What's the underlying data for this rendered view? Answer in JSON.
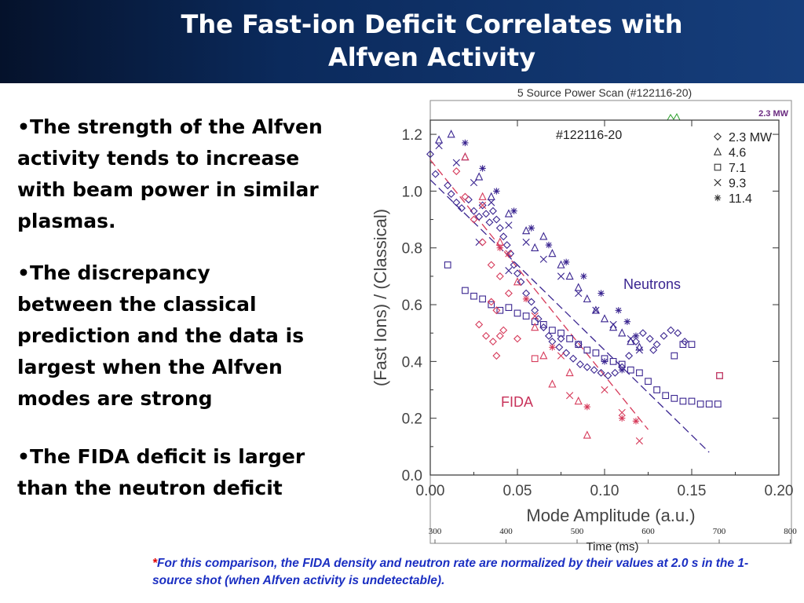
{
  "slide": {
    "title_lines": [
      "The Fast-ion Deficit Correlates with",
      "Alfven Activity"
    ],
    "bullets": [
      "•The strength of the Alfven\nactivity tends to increase\nwith beam power in similar\nplasmas.",
      "•The discrepancy\nbetween the classical\nprediction and the data is\nlargest when the Alfven\nmodes are strong",
      "•The FIDA deficit is larger\nthan the neutron deficit"
    ],
    "footnote_star": "*",
    "footnote": "For this comparison, the FIDA density and neutron rate are normalized by their values at 2.0 s in the 1-source shot (when Alfven activity is undetectable)."
  },
  "background_panel": {
    "title": "5 Source Power Scan (#122116-20)",
    "label": "2.3 MW",
    "time_ticks": [
      "300",
      "400",
      "500",
      "600",
      "700",
      "800"
    ],
    "time_label": "Time (ms)"
  },
  "chart_data": {
    "type": "scatter",
    "title": "#122116-20",
    "xlabel": "Mode Amplitude (a.u.)",
    "ylabel": "(Fast Ions) / (Classical)",
    "xlim": [
      0.0,
      0.2
    ],
    "ylim": [
      0.0,
      1.25
    ],
    "xticks": [
      "0.00",
      "0.05",
      "0.10",
      "0.15",
      "0.20"
    ],
    "yticks": [
      "0.0",
      "0.2",
      "0.4",
      "0.6",
      "0.8",
      "1.0",
      "1.2"
    ],
    "legend": {
      "placement": "top-right",
      "entries": [
        {
          "symbol": "diamond",
          "label": "2.3 MW"
        },
        {
          "symbol": "triangle",
          "label": "4.6"
        },
        {
          "symbol": "square",
          "label": "7.1"
        },
        {
          "symbol": "x",
          "label": "9.3"
        },
        {
          "symbol": "asterisk",
          "label": "11.4"
        }
      ]
    },
    "annotations": [
      {
        "text": "Neutrons",
        "color": "#3a2590"
      },
      {
        "text": "FIDA",
        "color": "#c8325a"
      }
    ],
    "colors": {
      "neutrons": "#3a2590",
      "fida": "#d63a5a",
      "axes": "#333333"
    },
    "fit_lines": [
      {
        "name": "Neutrons",
        "x": [
          0.0,
          0.16
        ],
        "y": [
          1.04,
          0.08
        ]
      },
      {
        "name": "FIDA",
        "x": [
          0.0,
          0.125
        ],
        "y": [
          1.11,
          0.16
        ]
      }
    ],
    "series": [
      {
        "name": "Neutrons",
        "color": "neutrons",
        "points": [
          [
            0.0,
            1.13,
            "diamond"
          ],
          [
            0.003,
            1.06,
            "diamond"
          ],
          [
            0.01,
            1.02,
            "diamond"
          ],
          [
            0.012,
            0.99,
            "diamond"
          ],
          [
            0.015,
            0.96,
            "diamond"
          ],
          [
            0.018,
            0.94,
            "diamond"
          ],
          [
            0.022,
            0.97,
            "diamond"
          ],
          [
            0.025,
            0.93,
            "diamond"
          ],
          [
            0.028,
            0.91,
            "diamond"
          ],
          [
            0.03,
            0.95,
            "diamond"
          ],
          [
            0.032,
            0.92,
            "diamond"
          ],
          [
            0.034,
            0.89,
            "diamond"
          ],
          [
            0.036,
            0.93,
            "diamond"
          ],
          [
            0.038,
            0.9,
            "diamond"
          ],
          [
            0.04,
            0.87,
            "diamond"
          ],
          [
            0.042,
            0.84,
            "diamond"
          ],
          [
            0.044,
            0.81,
            "diamond"
          ],
          [
            0.046,
            0.78,
            "diamond"
          ],
          [
            0.048,
            0.74,
            "diamond"
          ],
          [
            0.05,
            0.71,
            "diamond"
          ],
          [
            0.052,
            0.68,
            "diamond"
          ],
          [
            0.055,
            0.64,
            "diamond"
          ],
          [
            0.058,
            0.61,
            "diamond"
          ],
          [
            0.06,
            0.58,
            "diamond"
          ],
          [
            0.062,
            0.55,
            "diamond"
          ],
          [
            0.065,
            0.52,
            "diamond"
          ],
          [
            0.068,
            0.49,
            "diamond"
          ],
          [
            0.07,
            0.47,
            "diamond"
          ],
          [
            0.074,
            0.45,
            "diamond"
          ],
          [
            0.078,
            0.43,
            "diamond"
          ],
          [
            0.082,
            0.41,
            "diamond"
          ],
          [
            0.086,
            0.39,
            "diamond"
          ],
          [
            0.09,
            0.38,
            "diamond"
          ],
          [
            0.094,
            0.37,
            "diamond"
          ],
          [
            0.098,
            0.36,
            "diamond"
          ],
          [
            0.102,
            0.35,
            "diamond"
          ],
          [
            0.106,
            0.36,
            "diamond"
          ],
          [
            0.11,
            0.38,
            "diamond"
          ],
          [
            0.114,
            0.42,
            "diamond"
          ],
          [
            0.118,
            0.47,
            "diamond"
          ],
          [
            0.122,
            0.5,
            "diamond"
          ],
          [
            0.126,
            0.48,
            "diamond"
          ],
          [
            0.13,
            0.46,
            "diamond"
          ],
          [
            0.134,
            0.49,
            "diamond"
          ],
          [
            0.138,
            0.51,
            "diamond"
          ],
          [
            0.142,
            0.5,
            "diamond"
          ],
          [
            0.146,
            0.47,
            "diamond"
          ],
          [
            0.128,
            0.44,
            "diamond"
          ],
          [
            0.075,
            0.48,
            "diamond"
          ],
          [
            0.085,
            0.46,
            "diamond"
          ],
          [
            0.005,
            1.18,
            "triangle"
          ],
          [
            0.012,
            1.2,
            "triangle"
          ],
          [
            0.02,
            1.12,
            "triangle"
          ],
          [
            0.028,
            1.05,
            "triangle"
          ],
          [
            0.035,
            0.98,
            "triangle"
          ],
          [
            0.045,
            0.92,
            "triangle"
          ],
          [
            0.055,
            0.86,
            "triangle"
          ],
          [
            0.06,
            0.8,
            "triangle"
          ],
          [
            0.065,
            0.84,
            "triangle"
          ],
          [
            0.07,
            0.78,
            "triangle"
          ],
          [
            0.075,
            0.74,
            "triangle"
          ],
          [
            0.08,
            0.7,
            "triangle"
          ],
          [
            0.085,
            0.66,
            "triangle"
          ],
          [
            0.09,
            0.62,
            "triangle"
          ],
          [
            0.095,
            0.58,
            "triangle"
          ],
          [
            0.1,
            0.55,
            "triangle"
          ],
          [
            0.105,
            0.52,
            "triangle"
          ],
          [
            0.11,
            0.5,
            "triangle"
          ],
          [
            0.115,
            0.47,
            "triangle"
          ],
          [
            0.12,
            0.45,
            "triangle"
          ],
          [
            0.01,
            0.74,
            "square"
          ],
          [
            0.02,
            0.65,
            "square"
          ],
          [
            0.025,
            0.63,
            "square"
          ],
          [
            0.03,
            0.62,
            "square"
          ],
          [
            0.035,
            0.6,
            "square"
          ],
          [
            0.04,
            0.58,
            "square"
          ],
          [
            0.045,
            0.59,
            "square"
          ],
          [
            0.05,
            0.57,
            "square"
          ],
          [
            0.055,
            0.56,
            "square"
          ],
          [
            0.06,
            0.54,
            "square"
          ],
          [
            0.065,
            0.53,
            "square"
          ],
          [
            0.07,
            0.51,
            "square"
          ],
          [
            0.075,
            0.5,
            "square"
          ],
          [
            0.08,
            0.48,
            "square"
          ],
          [
            0.085,
            0.46,
            "square"
          ],
          [
            0.09,
            0.44,
            "square"
          ],
          [
            0.095,
            0.43,
            "square"
          ],
          [
            0.1,
            0.41,
            "square"
          ],
          [
            0.105,
            0.4,
            "square"
          ],
          [
            0.11,
            0.39,
            "square"
          ],
          [
            0.115,
            0.37,
            "square"
          ],
          [
            0.12,
            0.36,
            "square"
          ],
          [
            0.125,
            0.33,
            "square"
          ],
          [
            0.13,
            0.3,
            "square"
          ],
          [
            0.135,
            0.28,
            "square"
          ],
          [
            0.14,
            0.27,
            "square"
          ],
          [
            0.145,
            0.26,
            "square"
          ],
          [
            0.15,
            0.26,
            "square"
          ],
          [
            0.155,
            0.25,
            "square"
          ],
          [
            0.16,
            0.25,
            "square"
          ],
          [
            0.165,
            0.25,
            "square"
          ],
          [
            0.166,
            0.35,
            "square"
          ],
          [
            0.14,
            0.42,
            "square"
          ],
          [
            0.145,
            0.46,
            "square"
          ],
          [
            0.15,
            0.46,
            "square"
          ],
          [
            0.005,
            1.16,
            "x"
          ],
          [
            0.015,
            1.1,
            "x"
          ],
          [
            0.025,
            1.03,
            "x"
          ],
          [
            0.035,
            0.96,
            "x"
          ],
          [
            0.045,
            0.88,
            "x"
          ],
          [
            0.055,
            0.82,
            "x"
          ],
          [
            0.065,
            0.76,
            "x"
          ],
          [
            0.075,
            0.7,
            "x"
          ],
          [
            0.085,
            0.64,
            "x"
          ],
          [
            0.095,
            0.58,
            "x"
          ],
          [
            0.105,
            0.53,
            "x"
          ],
          [
            0.115,
            0.48,
            "x"
          ],
          [
            0.12,
            0.44,
            "x"
          ],
          [
            0.028,
            0.82,
            "x"
          ],
          [
            0.045,
            0.72,
            "x"
          ],
          [
            0.02,
            1.17,
            "asterisk"
          ],
          [
            0.03,
            1.08,
            "asterisk"
          ],
          [
            0.038,
            1.0,
            "asterisk"
          ],
          [
            0.048,
            0.93,
            "asterisk"
          ],
          [
            0.058,
            0.87,
            "asterisk"
          ],
          [
            0.068,
            0.81,
            "asterisk"
          ],
          [
            0.078,
            0.75,
            "asterisk"
          ],
          [
            0.088,
            0.7,
            "asterisk"
          ],
          [
            0.098,
            0.64,
            "asterisk"
          ],
          [
            0.108,
            0.58,
            "asterisk"
          ],
          [
            0.113,
            0.54,
            "asterisk"
          ],
          [
            0.118,
            0.49,
            "asterisk"
          ],
          [
            0.1,
            0.4,
            "asterisk"
          ],
          [
            0.11,
            0.37,
            "asterisk"
          ]
        ]
      },
      {
        "name": "FIDA",
        "color": "fida",
        "points": [
          [
            0.015,
            1.07,
            "diamond"
          ],
          [
            0.02,
            0.98,
            "diamond"
          ],
          [
            0.025,
            0.9,
            "diamond"
          ],
          [
            0.03,
            0.82,
            "diamond"
          ],
          [
            0.035,
            0.74,
            "diamond"
          ],
          [
            0.04,
            0.7,
            "diamond"
          ],
          [
            0.045,
            0.64,
            "diamond"
          ],
          [
            0.035,
            0.61,
            "diamond"
          ],
          [
            0.038,
            0.58,
            "diamond"
          ],
          [
            0.028,
            0.53,
            "diamond"
          ],
          [
            0.032,
            0.49,
            "diamond"
          ],
          [
            0.036,
            0.47,
            "diamond"
          ],
          [
            0.04,
            0.49,
            "diamond"
          ],
          [
            0.042,
            0.51,
            "diamond"
          ],
          [
            0.05,
            0.48,
            "diamond"
          ],
          [
            0.038,
            0.42,
            "diamond"
          ],
          [
            0.02,
            1.12,
            "triangle"
          ],
          [
            0.03,
            0.98,
            "triangle"
          ],
          [
            0.04,
            0.82,
            "triangle"
          ],
          [
            0.05,
            0.68,
            "triangle"
          ],
          [
            0.06,
            0.52,
            "triangle"
          ],
          [
            0.065,
            0.42,
            "triangle"
          ],
          [
            0.07,
            0.32,
            "triangle"
          ],
          [
            0.08,
            0.36,
            "triangle"
          ],
          [
            0.085,
            0.26,
            "triangle"
          ],
          [
            0.09,
            0.14,
            "triangle"
          ],
          [
            0.06,
            0.41,
            "square"
          ],
          [
            0.166,
            0.35,
            "square"
          ],
          [
            0.03,
            0.95,
            "x"
          ],
          [
            0.045,
            0.78,
            "x"
          ],
          [
            0.06,
            0.56,
            "x"
          ],
          [
            0.075,
            0.42,
            "x"
          ],
          [
            0.08,
            0.28,
            "x"
          ],
          [
            0.1,
            0.3,
            "x"
          ],
          [
            0.11,
            0.22,
            "x"
          ],
          [
            0.12,
            0.12,
            "x"
          ],
          [
            0.04,
            0.8,
            "asterisk"
          ],
          [
            0.055,
            0.62,
            "asterisk"
          ],
          [
            0.07,
            0.45,
            "asterisk"
          ],
          [
            0.09,
            0.24,
            "asterisk"
          ],
          [
            0.11,
            0.2,
            "asterisk"
          ],
          [
            0.118,
            0.19,
            "asterisk"
          ]
        ]
      }
    ]
  }
}
